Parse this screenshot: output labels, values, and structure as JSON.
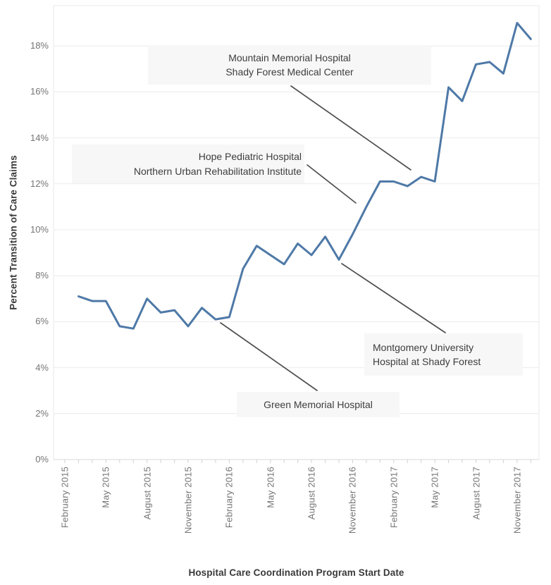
{
  "chart_data": {
    "type": "line",
    "title": "",
    "xlabel": "Hospital Care Coordination Program Start Date",
    "ylabel": "Percent Transition of Care Claims",
    "x": [
      "March 2015",
      "April 2015",
      "May 2015",
      "June 2015",
      "July 2015",
      "August 2015",
      "September 2015",
      "October 2015",
      "November 2015",
      "December 2015",
      "January 2016",
      "February 2016",
      "March 2016",
      "April 2016",
      "May 2016",
      "June 2016",
      "July 2016",
      "August 2016",
      "September 2016",
      "October 2016",
      "November 2016",
      "December 2016",
      "January 2017",
      "February 2017",
      "March 2017",
      "April 2017",
      "May 2017",
      "June 2017",
      "July 2017",
      "August 2017",
      "September 2017",
      "October 2017",
      "November 2017",
      "December 2017"
    ],
    "values": [
      7.1,
      6.9,
      6.9,
      5.8,
      5.7,
      7.0,
      6.4,
      6.5,
      5.8,
      6.6,
      6.1,
      6.2,
      8.3,
      9.3,
      8.9,
      8.5,
      9.4,
      8.9,
      9.7,
      8.7,
      9.8,
      11.0,
      12.1,
      12.1,
      11.9,
      12.3,
      12.1,
      16.2,
      15.6,
      17.2,
      17.3,
      16.8,
      19.0,
      18.3
    ],
    "x_tick_labels": [
      "February 2015",
      "May 2015",
      "August 2015",
      "November 2015",
      "February 2016",
      "May 2016",
      "August 2016",
      "November 2016",
      "February 2017",
      "May 2017",
      "August 2017",
      "November 2017"
    ],
    "y_tick_labels": [
      "0%",
      "2%",
      "4%",
      "6%",
      "8%",
      "10%",
      "12%",
      "14%",
      "16%",
      "18%"
    ],
    "ylim": [
      0,
      19.8
    ],
    "grid": "horizontal",
    "legend": "none",
    "unit": "percent",
    "annotations": [
      {
        "id": "mountain-memorial",
        "lines": [
          "Mountain Memorial Hospital",
          "Shady Forest Medical Center"
        ]
      },
      {
        "id": "hope-pediatric",
        "lines": [
          "Hope Pediatric Hospital",
          "Northern Urban Rehabilitation Institute"
        ]
      },
      {
        "id": "montgomery-university",
        "lines": [
          "Montgomery University",
          "Hospital at Shady Forest"
        ]
      },
      {
        "id": "green-memorial",
        "lines": [
          "Green Memorial Hospital"
        ]
      }
    ],
    "colors": {
      "line": "#4e79a7",
      "gridline": "#ececec",
      "plot_border": "#e8e8e8",
      "axis_tick": "#d2d2d2",
      "tick_label": "#757575",
      "axis_title": "#3a3a3a",
      "annotation_text": "#3d3d3d",
      "annotation_bg": "#f7f7f7",
      "leader_line": "#4f4f4f"
    }
  }
}
